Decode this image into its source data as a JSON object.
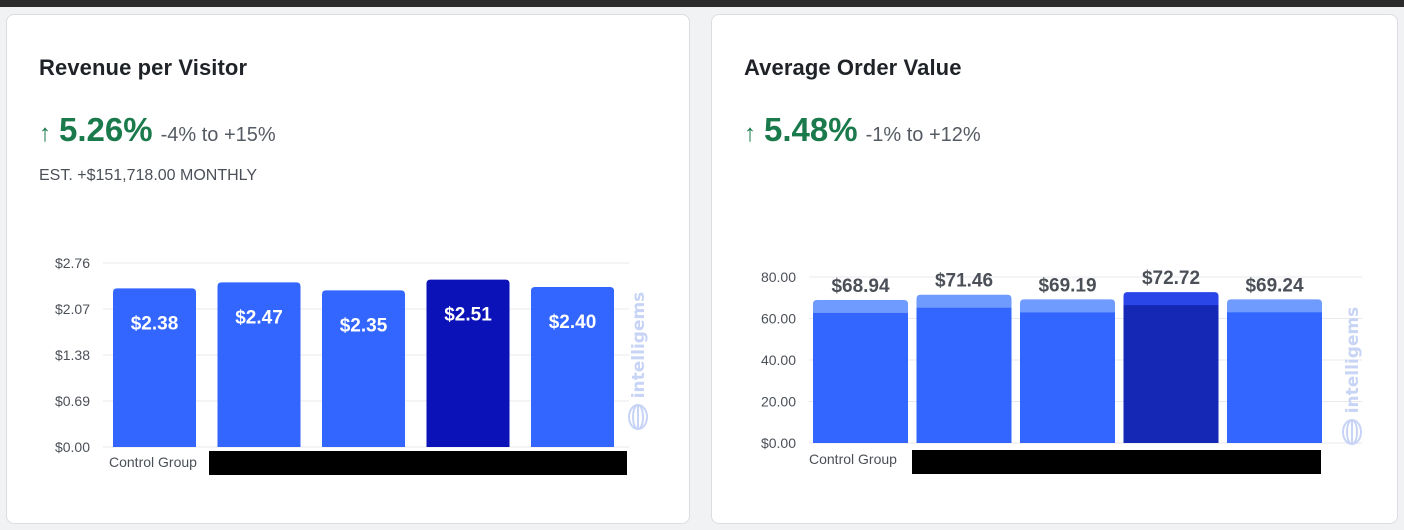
{
  "cards": [
    {
      "title": "Revenue per Visitor",
      "lift": "5.26%",
      "range": "-4% to +15%",
      "estimate": "EST. +$151,718.00 MONTHLY"
    },
    {
      "title": "Average Order Value",
      "lift": "5.48%",
      "range": "-1% to +12%",
      "estimate": ""
    }
  ],
  "watermark": "intelligems",
  "colors": {
    "positive": "#1a7a4c",
    "bar": "#3366ff",
    "bar_highlight": "#0a12b8",
    "bar_highlight_aov": "#1428b5",
    "ci_band": "#6f9bff",
    "ci_band_highlight": "#2a45e8"
  },
  "chart_data": [
    {
      "type": "bar",
      "categories": [
        "Control Group",
        "",
        "",
        "",
        ""
      ],
      "values": [
        2.38,
        2.47,
        2.35,
        2.51,
        2.4
      ],
      "labels": [
        "$2.38",
        "$2.47",
        "$2.35",
        "$2.51",
        "$2.40"
      ],
      "ytick_labels": [
        "$0.00",
        "$0.69",
        "$1.38",
        "$2.07",
        "$2.76"
      ],
      "ylim": [
        0,
        2.76
      ],
      "grid": true,
      "highlight_index": 3,
      "label_position": "inside"
    },
    {
      "type": "bar",
      "categories": [
        "Control Group",
        "",
        "",
        "",
        ""
      ],
      "values": [
        68.94,
        71.46,
        69.19,
        72.72,
        69.24
      ],
      "labels": [
        "$68.94",
        "$71.46",
        "$69.19",
        "$72.72",
        "$69.24"
      ],
      "ytick_labels": [
        "$0.00",
        "20.00",
        "40.00",
        "60.00",
        "80.00"
      ],
      "ylim": [
        0,
        80
      ],
      "grid": true,
      "highlight_index": 3,
      "label_position": "above"
    }
  ]
}
